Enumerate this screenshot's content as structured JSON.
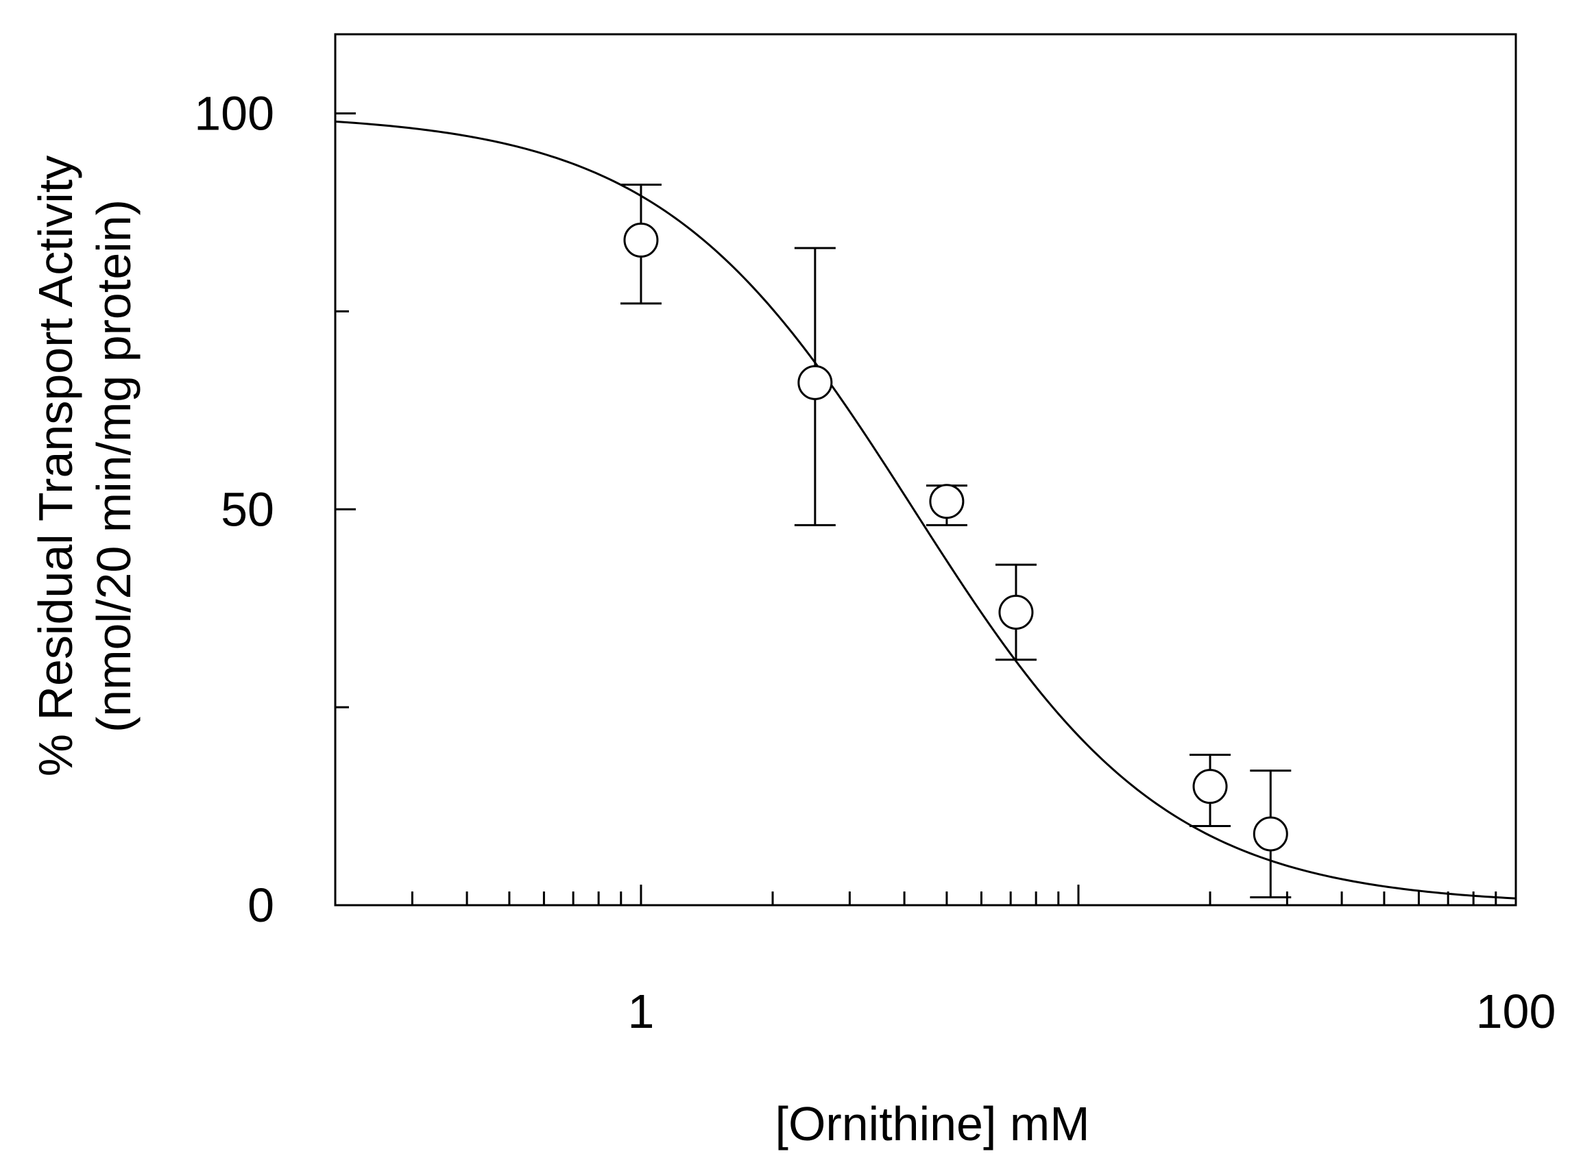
{
  "chart_data": {
    "type": "scatter",
    "title": "",
    "xlabel": "[Ornithine] mM",
    "ylabel": [
      "% Residual Transport Activity",
      "(nmol/20 min/mg protein)"
    ],
    "x_scale": "log",
    "xlim": [
      0.2,
      100
    ],
    "ylim": [
      0,
      110
    ],
    "x_tick_labels": [
      {
        "value": 1,
        "label": "1"
      },
      {
        "value": 100,
        "label": "100"
      }
    ],
    "y_tick_labels": [
      {
        "value": 0,
        "label": "0"
      },
      {
        "value": 50,
        "label": "50"
      },
      {
        "value": 100,
        "label": "100"
      }
    ],
    "y_minor_ticks": [
      25,
      75
    ],
    "grid": false,
    "points": [
      {
        "x": 1.0,
        "y": 84,
        "err_low": 76,
        "err_high": 91
      },
      {
        "x": 2.5,
        "y": 66,
        "err_low": 48,
        "err_high": 83
      },
      {
        "x": 5.0,
        "y": 51,
        "err_low": 48,
        "err_high": 53
      },
      {
        "x": 7.2,
        "y": 37,
        "err_low": 31,
        "err_high": 43
      },
      {
        "x": 20.0,
        "y": 15,
        "err_low": 10,
        "err_high": 19
      },
      {
        "x": 27.5,
        "y": 9,
        "err_low": 1,
        "err_high": 17
      }
    ],
    "fit_curve": {
      "type": "sigmoid",
      "description": "fitted inhibition curve",
      "top": 100,
      "bottom": 0,
      "ic50": 4.2,
      "hill": 1.5
    }
  }
}
